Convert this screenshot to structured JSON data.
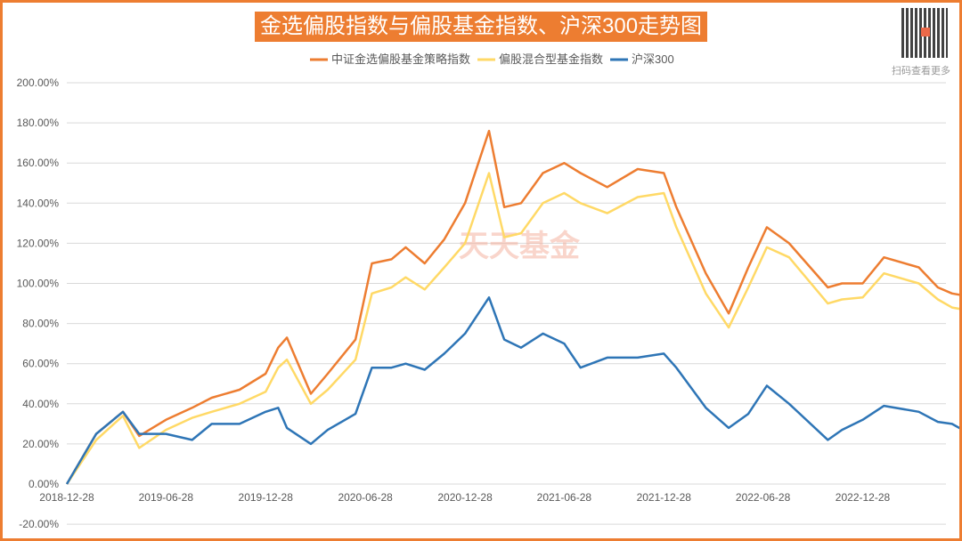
{
  "chart_data": {
    "type": "line",
    "title": "金选偏股指数与偏股基金指数、沪深300走势图",
    "legend_position": "top",
    "grid": true,
    "ylim": [
      -20,
      200
    ],
    "yticks": [
      -20,
      0,
      20,
      40,
      60,
      80,
      100,
      120,
      140,
      160,
      180,
      200
    ],
    "ytick_labels": [
      "-20.00%",
      "0.00%",
      "20.00%",
      "40.00%",
      "60.00%",
      "80.00%",
      "100.00%",
      "120.00%",
      "140.00%",
      "160.00%",
      "180.00%",
      "200.00%"
    ],
    "xtick_labels": [
      "2018-12-28",
      "2019-06-28",
      "2019-12-28",
      "2020-06-28",
      "2020-12-28",
      "2021-06-28",
      "2021-12-28",
      "2022-06-28",
      "2022-12-28"
    ],
    "x": [
      "2018-12-28",
      "2019-02-20",
      "2019-04-10",
      "2019-05-10",
      "2019-06-28",
      "2019-08-15",
      "2019-09-20",
      "2019-11-10",
      "2019-12-28",
      "2020-01-20",
      "2020-02-05",
      "2020-03-20",
      "2020-04-20",
      "2020-06-10",
      "2020-07-10",
      "2020-08-15",
      "2020-09-10",
      "2020-10-15",
      "2020-11-20",
      "2020-12-28",
      "2021-02-10",
      "2021-03-10",
      "2021-04-10",
      "2021-05-20",
      "2021-06-28",
      "2021-07-28",
      "2021-09-15",
      "2021-11-10",
      "2021-12-28",
      "2022-01-20",
      "2022-03-15",
      "2022-04-26",
      "2022-06-01",
      "2022-07-05",
      "2022-08-15",
      "2022-10-25",
      "2022-11-20",
      "2022-12-28",
      "2023-02-05",
      "2023-04-10",
      "2023-05-15",
      "2023-06-10",
      "2023-06-30"
    ],
    "series": [
      {
        "name": "中证金选偏股基金策略指数",
        "color": "#ed7d31",
        "values": [
          0,
          25,
          36,
          24,
          32,
          38,
          43,
          47,
          55,
          68,
          73,
          45,
          55,
          72,
          110,
          112,
          118,
          110,
          122,
          140,
          176,
          138,
          140,
          155,
          160,
          155,
          148,
          157,
          155,
          138,
          105,
          85,
          108,
          128,
          120,
          98,
          100,
          100,
          113,
          108,
          98,
          95,
          94
        ]
      },
      {
        "name": "偏股混合型基金指数",
        "color": "#ffd966",
        "values": [
          0,
          22,
          34,
          18,
          27,
          33,
          36,
          40,
          46,
          58,
          62,
          40,
          47,
          62,
          95,
          98,
          103,
          97,
          108,
          120,
          155,
          123,
          125,
          140,
          145,
          140,
          135,
          143,
          145,
          128,
          95,
          78,
          98,
          118,
          113,
          90,
          92,
          93,
          105,
          100,
          92,
          88,
          87
        ]
      },
      {
        "name": "沪深300",
        "color": "#2e75b6",
        "values": [
          0,
          25,
          36,
          25,
          25,
          22,
          30,
          30,
          36,
          38,
          28,
          20,
          27,
          35,
          58,
          58,
          60,
          57,
          65,
          75,
          93,
          72,
          68,
          75,
          70,
          58,
          63,
          63,
          65,
          58,
          38,
          28,
          35,
          49,
          40,
          22,
          27,
          32,
          39,
          36,
          31,
          30,
          27
        ]
      }
    ]
  },
  "watermark": "天天基金",
  "qr_caption": "扫码查看更多"
}
